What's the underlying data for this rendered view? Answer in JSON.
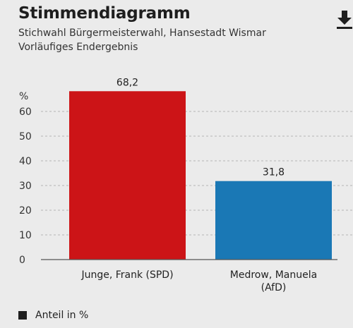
{
  "header": {
    "title": "Stimmendiagramm",
    "subtitle_line1": "Stichwahl Bürgermeisterwahl, Hansestadt Wismar",
    "subtitle_line2": "Vorläufiges Endergebnis",
    "download_icon": "download-icon"
  },
  "chart_data": {
    "type": "bar",
    "categories": [
      [
        "Junge, Frank (SPD)"
      ],
      [
        "Medrow, Manuela",
        "(AfD)"
      ]
    ],
    "series": [
      {
        "name": "Anteil in %",
        "values": [
          68.2,
          31.8
        ]
      }
    ],
    "value_labels": [
      "68,2",
      "31,8"
    ],
    "bar_colors": [
      "#cc1417",
      "#1a78b5"
    ],
    "ylabel": "%",
    "ylim": [
      0,
      68.2
    ],
    "yticks": [
      0,
      10,
      20,
      30,
      40,
      50,
      60
    ],
    "grid": true,
    "legend_position": "bottom-left"
  },
  "legend": {
    "label": "Anteil in %",
    "swatch_color": "#1e1e1e"
  }
}
